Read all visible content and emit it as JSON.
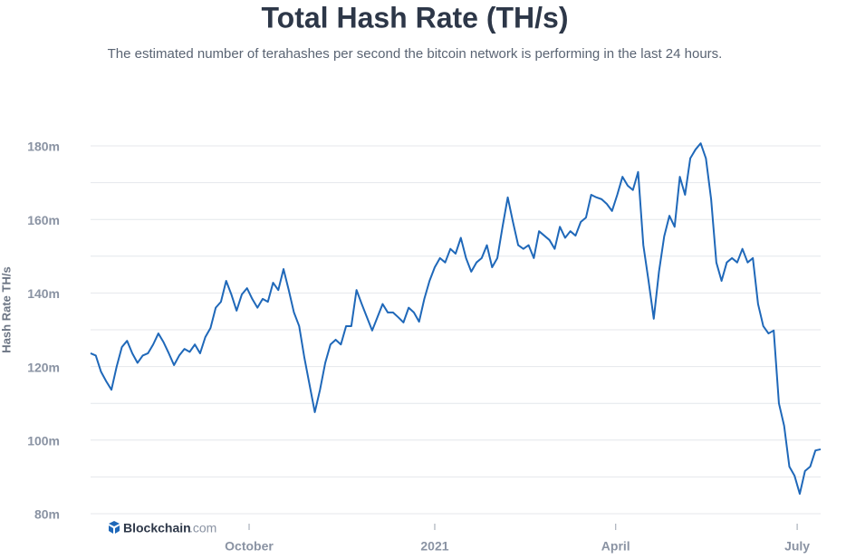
{
  "chart_data": {
    "type": "line",
    "title": "Total Hash Rate (TH/s)",
    "subtitle": "The estimated number of terahashes per second the bitcoin network is performing in the last 24 hours.",
    "y_label": "Hash Rate TH/s",
    "brand": "Blockchain",
    "brand_suffix": ".com",
    "color": "#1f68b9",
    "ylim": [
      80,
      180
    ],
    "yticks": [
      {
        "value": 80,
        "label": "80m"
      },
      {
        "value": 100,
        "label": "100m"
      },
      {
        "value": 120,
        "label": "120m"
      },
      {
        "value": 140,
        "label": "140m"
      },
      {
        "value": 160,
        "label": "160m"
      },
      {
        "value": 180,
        "label": "180m"
      }
    ],
    "ygrid": [
      80,
      90,
      100,
      110,
      120,
      130,
      140,
      150,
      160,
      170,
      180
    ],
    "grid": true,
    "xlim": [
      0,
      140
    ],
    "xticks": [
      {
        "value": 30.4,
        "label": "October"
      },
      {
        "value": 66,
        "label": "2021"
      },
      {
        "value": 100.7,
        "label": "April"
      },
      {
        "value": 135.5,
        "label": "July"
      }
    ],
    "values": [
      123.6,
      123,
      118.6,
      116,
      113.7,
      120,
      125.3,
      127,
      123.6,
      121,
      123,
      123.6,
      126,
      129,
      126.6,
      123.6,
      120.4,
      123,
      124.8,
      124,
      126,
      123.6,
      128,
      130.5,
      136,
      137.6,
      143.3,
      139.6,
      135.2,
      139.6,
      141.3,
      138.4,
      136,
      138.4,
      137.6,
      142.8,
      140.8,
      146.5,
      140.8,
      134.7,
      131,
      122.4,
      115,
      107.6,
      113.7,
      121,
      126,
      127.3,
      126,
      131,
      131,
      140.8,
      137,
      133.4,
      129.8,
      133.4,
      137,
      134.7,
      134.7,
      133.4,
      132,
      136,
      134.7,
      132.2,
      138.4,
      143.3,
      147,
      149.5,
      148.3,
      152,
      150.7,
      155,
      149.5,
      145.8,
      148.3,
      149.5,
      153,
      147,
      149.5,
      158,
      166,
      159.3,
      153,
      152,
      153,
      149.5,
      156.8,
      155.6,
      154.4,
      152,
      158,
      155,
      156.8,
      155.6,
      159.3,
      160.5,
      166.7,
      166,
      165.5,
      164.2,
      162.3,
      166.7,
      171.6,
      169.2,
      168,
      172.9,
      153,
      143.3,
      133,
      145.8,
      155.4,
      161,
      158,
      171.6,
      166.7,
      176.6,
      179,
      180.7,
      176.6,
      165.5,
      148.3,
      143.3,
      148.3,
      149.5,
      148.3,
      152,
      148.3,
      149.5,
      137,
      131,
      129,
      129.8,
      110,
      103.9,
      92.8,
      90.3,
      85.4,
      91.6,
      92.8,
      97.2,
      97.5
    ]
  }
}
